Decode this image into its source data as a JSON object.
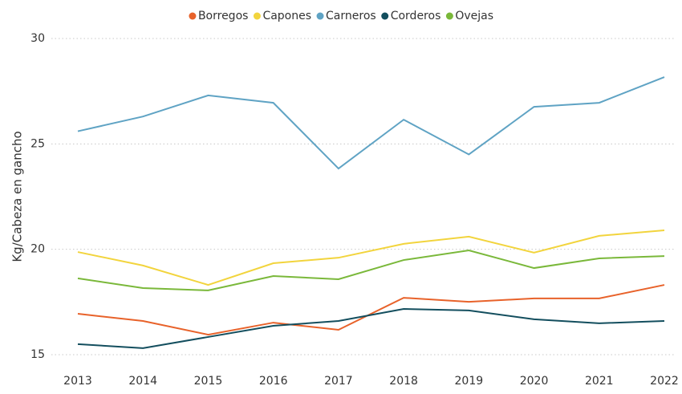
{
  "chart_data": {
    "type": "line",
    "y_label": "Kg/Cabeza en gancho",
    "x": [
      "2013",
      "2014",
      "2015",
      "2016",
      "2017",
      "2018",
      "2019",
      "2020",
      "2021",
      "2022"
    ],
    "series": [
      {
        "name": "Borregos",
        "color": "#e8622a",
        "values": [
          16.94,
          16.6,
          15.95,
          16.52,
          16.18,
          17.7,
          17.51,
          17.67,
          17.67,
          18.31
        ]
      },
      {
        "name": "Capones",
        "color": "#f2d43d",
        "values": [
          19.87,
          19.23,
          18.31,
          19.34,
          19.6,
          20.26,
          20.6,
          19.84,
          20.64,
          20.9
        ]
      },
      {
        "name": "Carneros",
        "color": "#5fa3c4",
        "values": [
          25.6,
          26.3,
          27.3,
          26.95,
          23.83,
          26.15,
          24.5,
          26.76,
          26.95,
          28.17
        ]
      },
      {
        "name": "Corderos",
        "color": "#134e5e",
        "values": [
          15.5,
          15.31,
          15.84,
          16.37,
          16.6,
          17.17,
          17.1,
          16.68,
          16.49,
          16.6
        ]
      },
      {
        "name": "Ovejas",
        "color": "#7ab83a",
        "values": [
          18.62,
          18.16,
          18.05,
          18.73,
          18.58,
          19.49,
          19.95,
          19.11,
          19.57,
          19.68
        ]
      }
    ],
    "ylim": [
      15,
      30
    ],
    "yticks": [
      15,
      20,
      25,
      30
    ],
    "grid": true,
    "legend": "top"
  }
}
